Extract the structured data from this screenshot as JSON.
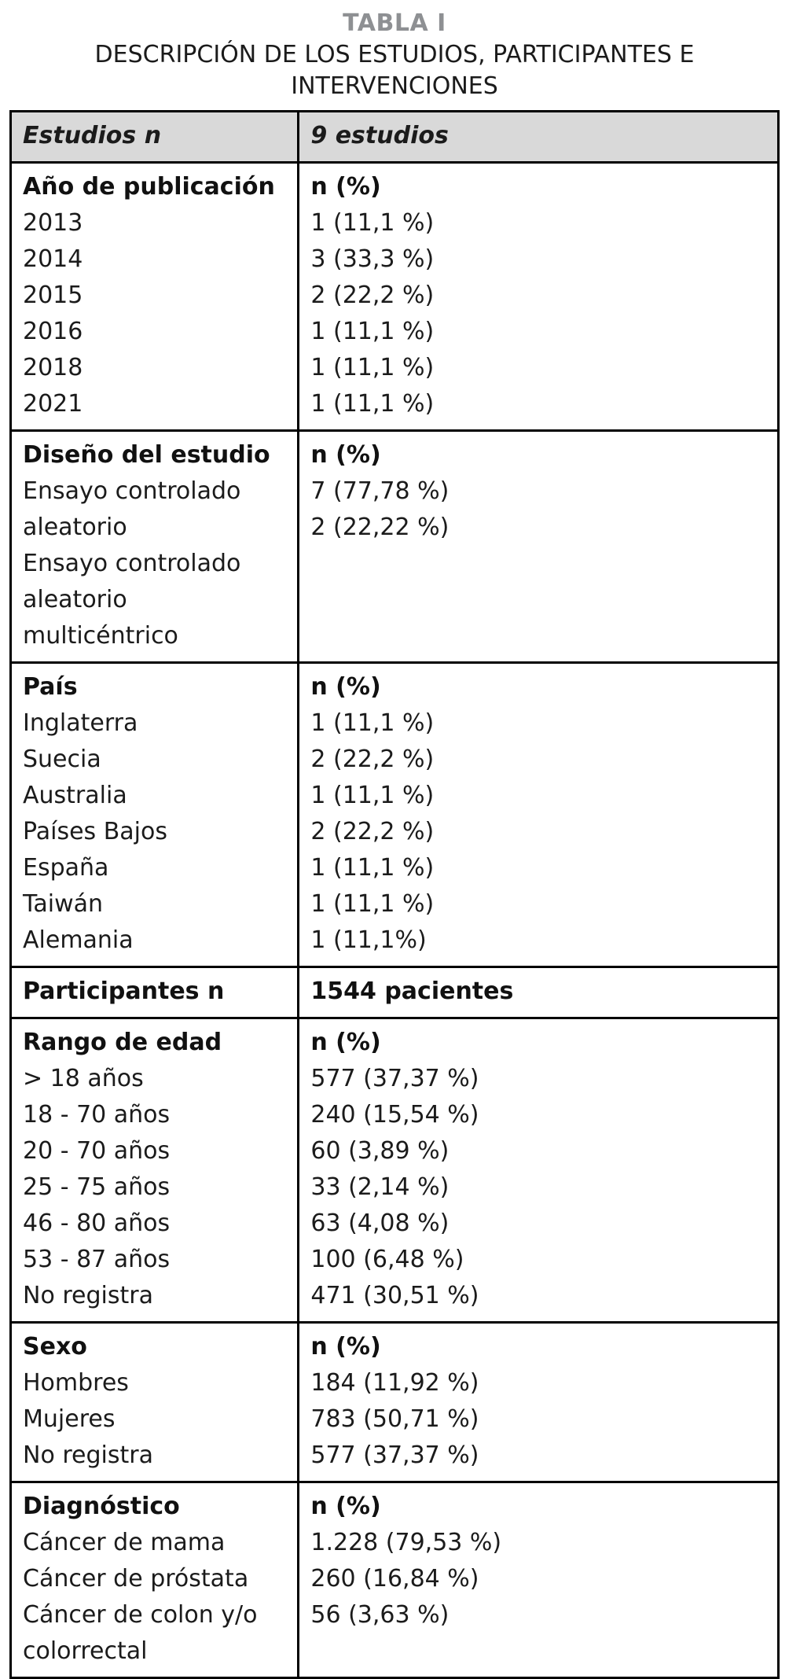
{
  "title": "TABLA I",
  "subtitle": "DESCRIPCIÓN DE LOS ESTUDIOS, PARTICIPANTES E INTERVENCIONES",
  "table": {
    "header": {
      "left": "Estudios n",
      "right": "9 estudios"
    },
    "sections": [
      {
        "id": "publication-year",
        "left": {
          "title": "Año de publicación",
          "items": [
            "2013",
            "2014",
            "2015",
            "2016",
            "2018",
            "2021"
          ]
        },
        "right": {
          "title": "n (%)",
          "items": [
            "1 (11,1 %)",
            "3 (33,3 %)",
            "2 (22,2 %)",
            "1 (11,1 %)",
            "1 (11,1 %)",
            "1 (11,1 %)"
          ]
        }
      },
      {
        "id": "study-design",
        "left": {
          "title": "Diseño del estudio",
          "items": [
            "Ensayo controlado aleatorio",
            "Ensayo controlado aleatorio multicéntrico"
          ]
        },
        "right": {
          "title": "n (%)",
          "items": [
            "7 (77,78 %)",
            "2 (22,22 %)"
          ]
        }
      },
      {
        "id": "country",
        "left": {
          "title": "País",
          "items": [
            "Inglaterra",
            "Suecia",
            "Australia",
            "Países Bajos",
            "España",
            "Taiwán",
            "Alemania"
          ]
        },
        "right": {
          "title": "n (%)",
          "items": [
            "1 (11,1 %)",
            "2 (22,2 %)",
            "1 (11,1 %)",
            "2 (22,2 %)",
            "1 (11,1 %)",
            "1 (11,1 %)",
            "1 (11,1%)"
          ]
        }
      },
      {
        "id": "participants",
        "left": {
          "title": "Participantes n",
          "items": []
        },
        "right": {
          "title": "1544 pacientes",
          "items": []
        }
      },
      {
        "id": "age-range",
        "left": {
          "title": "Rango de edad",
          "items": [
            "> 18 años",
            "18 - 70 años",
            "20 - 70 años",
            "25 - 75 años",
            "46 - 80 años",
            "53 - 87 años",
            "No registra"
          ]
        },
        "right": {
          "title": "n (%)",
          "items": [
            "577 (37,37 %)",
            "240 (15,54 %)",
            "60 (3,89 %)",
            "33 (2,14 %)",
            "63 (4,08 %)",
            "100 (6,48 %)",
            "471 (30,51 %)"
          ]
        }
      },
      {
        "id": "sex",
        "left": {
          "title": "Sexo",
          "items": [
            "Hombres",
            "Mujeres",
            "No registra"
          ]
        },
        "right": {
          "title": "n (%)",
          "items": [
            "184 (11,92 %)",
            "783 (50,71 %)",
            "577 (37,37 %)"
          ]
        }
      },
      {
        "id": "diagnosis",
        "left": {
          "title": "Diagnóstico",
          "items": [
            "Cáncer de mama",
            "Cáncer de próstata",
            "Cáncer de colon y/o colorrectal"
          ]
        },
        "right": {
          "title": "n (%)",
          "items": [
            "1.228 (79,53 %)",
            "260 (16,84 %)",
            "56 (3,63 %)"
          ]
        }
      }
    ]
  }
}
